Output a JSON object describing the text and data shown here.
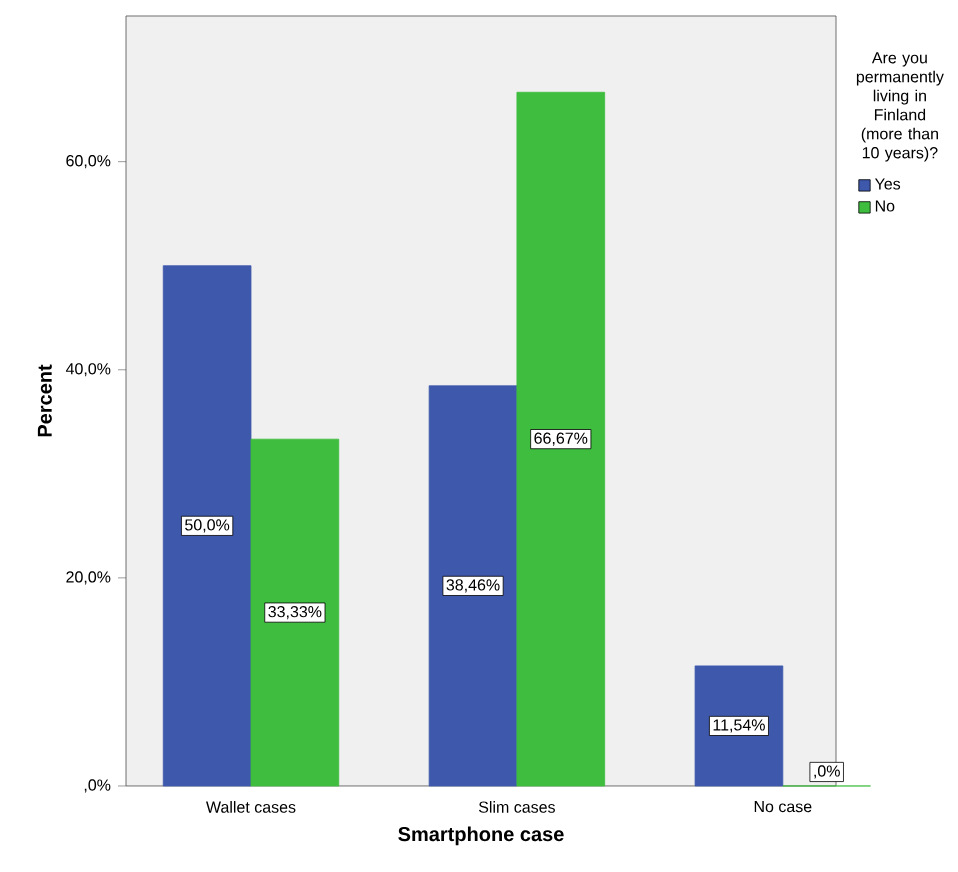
{
  "chart_data": {
    "type": "bar",
    "xlabel": "Smartphone case",
    "ylabel": "Percent",
    "legend_title": "Are you permanently living in Finland (more than 10 years)?",
    "legend": "top right",
    "categories": [
      "Wallet cases",
      "Slim cases",
      "No case"
    ],
    "series": [
      {
        "name": "Yes",
        "color": "#3e58ac",
        "values": [
          50.0,
          38.46,
          11.54
        ],
        "value_labels": [
          "50,0%",
          "38,46%",
          "11,54%"
        ]
      },
      {
        "name": "No",
        "color": "#3ebd3e",
        "values": [
          33.33,
          66.67,
          0
        ],
        "value_labels": [
          "33,33%",
          "66,67%",
          ",0%"
        ]
      }
    ],
    "ylim": [
      0,
      74
    ],
    "yticks": [
      {
        "value": 0,
        "label": ",0%"
      },
      {
        "value": 20,
        "label": "20,0%"
      },
      {
        "value": 40,
        "label": "40,0%"
      },
      {
        "value": 60,
        "label": "60,0%"
      }
    ]
  }
}
